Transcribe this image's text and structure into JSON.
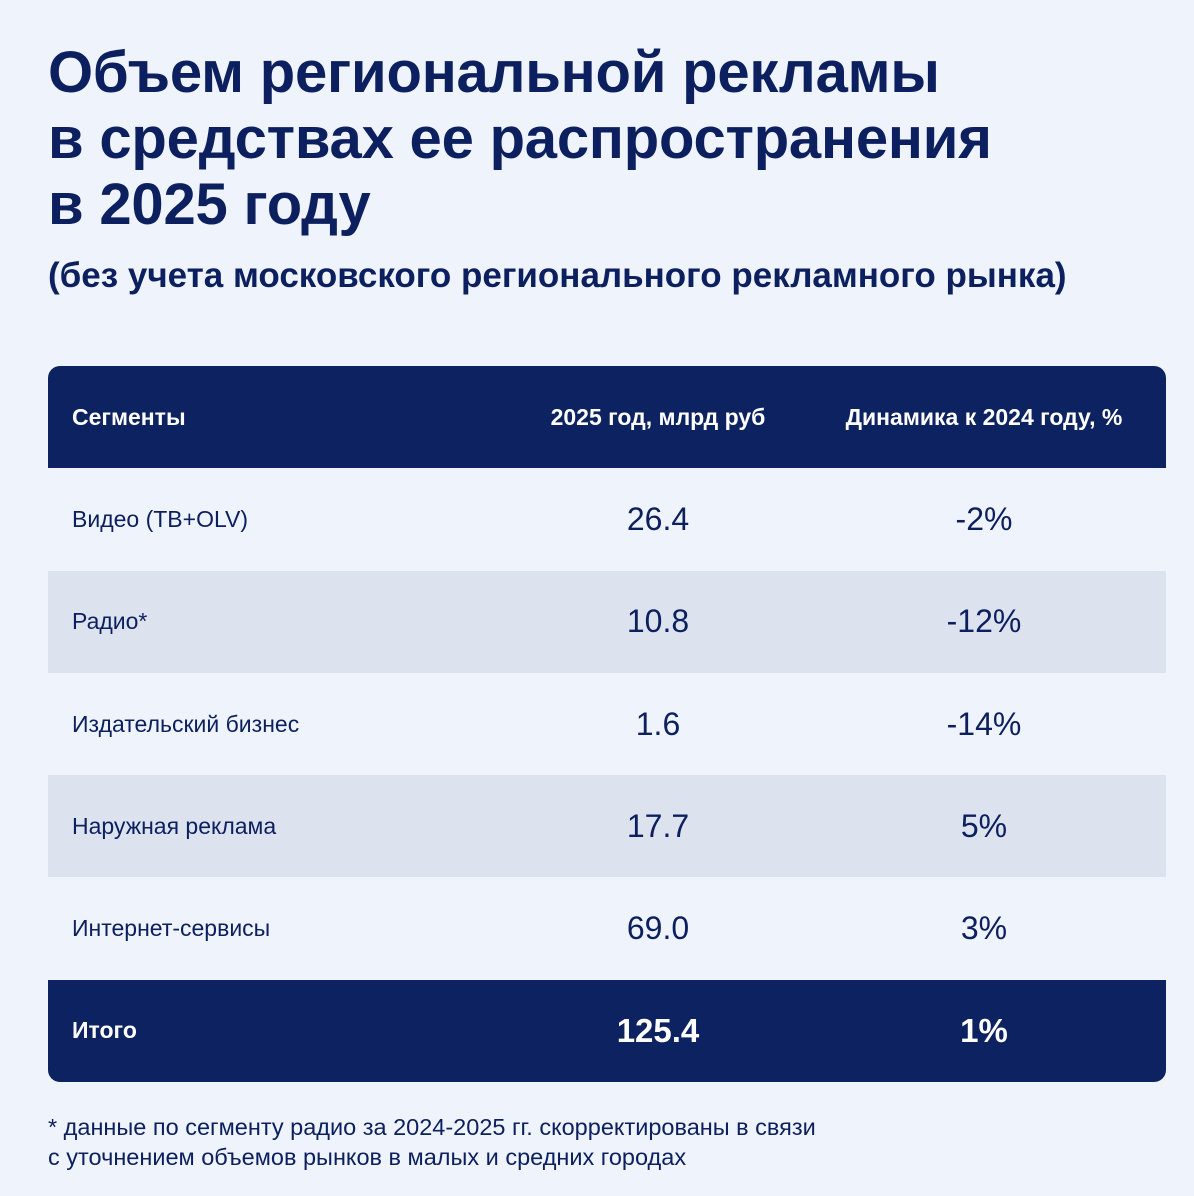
{
  "title": {
    "line1": "Объем региональной рекламы",
    "line2": "в средствах ее распространения",
    "line3": "в 2025 году"
  },
  "subtitle": "(без учета московского регионального рекламного рынка)",
  "table": {
    "headers": [
      "Сегменты",
      "2025 год, млрд руб",
      "Динамика к 2024 году, %"
    ],
    "rows": [
      {
        "segment": "Видео (ТВ+OLV)",
        "value": "26.4",
        "change": "-2%"
      },
      {
        "segment": "Радио*",
        "value": "10.8",
        "change": "-12%"
      },
      {
        "segment": "Издательский бизнес",
        "value": "1.6",
        "change": "-14%"
      },
      {
        "segment": "Наружная реклама",
        "value": "17.7",
        "change": "5%"
      },
      {
        "segment": "Интернет-сервисы",
        "value": "69.0",
        "change": "3%"
      }
    ],
    "total": {
      "segment": "Итого",
      "value": "125.4",
      "change": "1%"
    }
  },
  "footnote": {
    "line1": "* данные по сегменту радио за 2024-2025 гг. скорректированы в связи",
    "line2": "с уточнением объемов рынков в малых и средних городах"
  },
  "colors": {
    "background": "#eff3fc",
    "primary": "#0c1f5e",
    "header_bg": "#0d2260",
    "stripe": "#dde3ee"
  }
}
